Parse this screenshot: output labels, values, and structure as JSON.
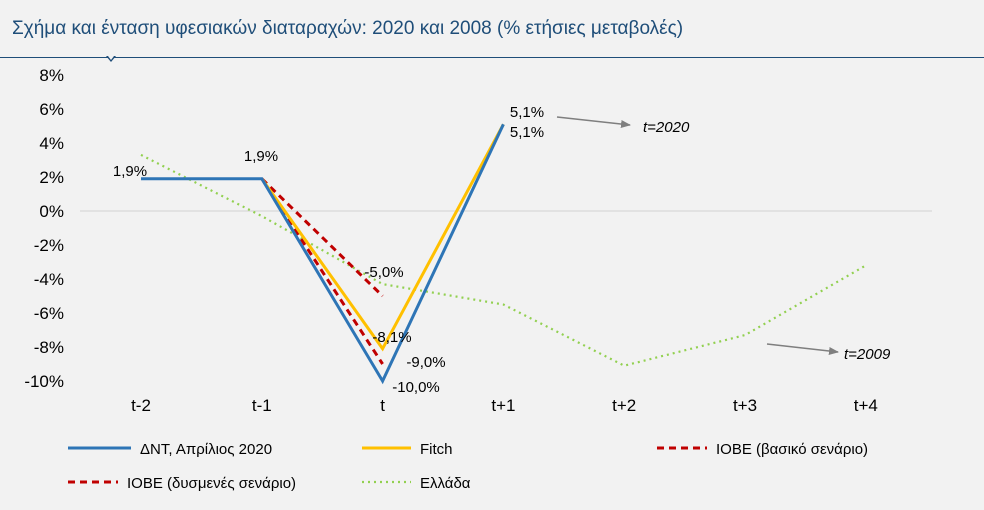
{
  "title": "Σχήμα και ένταση υφεσιακών διαταραχών: 2020 και 2008 (% ετήσιες μεταβολές)",
  "chart_data": {
    "type": "line",
    "categories": [
      "t-2",
      "t-1",
      "t",
      "t+1",
      "t+2",
      "t+3",
      "t+4"
    ],
    "ylim": [
      -10,
      8
    ],
    "yticks": [
      "8%",
      "6%",
      "4%",
      "2%",
      "0%",
      "-2%",
      "-4%",
      "-6%",
      "-8%",
      "-10%"
    ],
    "grid": false,
    "legend_position": "bottom",
    "series": [
      {
        "name": "ΔΝΤ, Απρίλιος 2020",
        "color": "#2e75b6",
        "dash": "solid",
        "values": [
          1.9,
          1.9,
          -10.0,
          5.1,
          null,
          null,
          null
        ]
      },
      {
        "name": "Fitch",
        "color": "#ffc000",
        "dash": "solid",
        "values": [
          null,
          1.9,
          -8.1,
          5.1,
          null,
          null,
          null
        ]
      },
      {
        "name": "ΙΟΒΕ (βασικό σενάριο)",
        "color": "#c00000",
        "dash": "dashed",
        "values": [
          null,
          1.9,
          -5.0,
          null,
          null,
          null,
          null
        ]
      },
      {
        "name": "ΙΟΒΕ (δυσμενές σενάριο)",
        "color": "#c00000",
        "dash": "dashed",
        "values": [
          null,
          1.9,
          -9.0,
          null,
          null,
          null,
          null
        ]
      },
      {
        "name": "Ελλάδα",
        "color": "#92d050",
        "dash": "dotted",
        "values": [
          3.3,
          -0.3,
          -4.3,
          -5.5,
          -9.1,
          -7.3,
          -3.2
        ]
      }
    ],
    "data_labels": [
      "1,9%",
      "1,9%",
      "-5,0%",
      "-8,1%",
      "-9,0%",
      "-10,0%",
      "5,1%",
      "5,1%"
    ],
    "annotations": [
      "t=2020",
      "t=2009"
    ]
  }
}
